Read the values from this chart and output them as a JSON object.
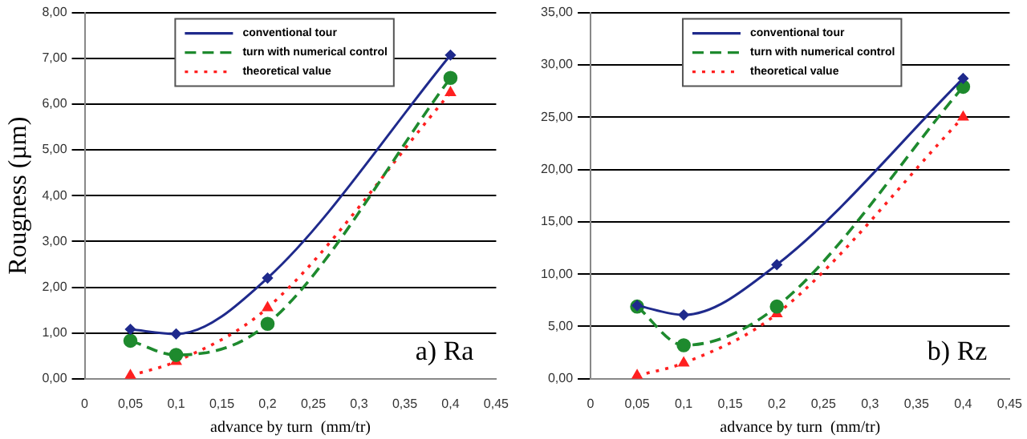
{
  "chart_data": [
    {
      "type": "line",
      "ylabel": "Rougness (µm)",
      "xlabel": "advance by turn  (mm/tr)",
      "annotations": [
        "a) Ra"
      ],
      "x": [
        0.05,
        0.1,
        0.2,
        0.4
      ],
      "series": [
        {
          "name": "conventional tour",
          "color": "#1f2a8c",
          "values": [
            1.08,
            0.98,
            2.2,
            7.07
          ],
          "line_style": "solid",
          "marker": "diamond"
        },
        {
          "name": "turn with numerical control",
          "color": "#1e8a2e",
          "values": [
            0.83,
            0.52,
            1.2,
            6.57
          ],
          "line_style": "dashed",
          "marker": "circle"
        },
        {
          "name": "theoretical value",
          "color": "#ff2020",
          "values": [
            0.07,
            0.38,
            1.55,
            6.25
          ],
          "line_style": "dotted",
          "marker": "triangle"
        }
      ],
      "xlim": [
        0,
        0.45
      ],
      "xticks": [
        0,
        {
          "value": 0.05,
          "label": "0,05"
        },
        {
          "value": 0.1,
          "label": "0,1"
        },
        {
          "value": 0.15,
          "label": "0,15"
        },
        {
          "value": 0.2,
          "label": "0,2"
        },
        {
          "value": 0.25,
          "label": "0,25"
        },
        {
          "value": 0.3,
          "label": "0,3"
        },
        {
          "value": 0.35,
          "label": "0,35"
        },
        {
          "value": 0.4,
          "label": "0,4"
        },
        {
          "value": 0.45,
          "label": "0,45"
        }
      ],
      "ylim": [
        0,
        8
      ],
      "yticks": [
        {
          "value": 0,
          "label": "0,00"
        },
        {
          "value": 1,
          "label": "1,00"
        },
        {
          "value": 2,
          "label": "2,00"
        },
        {
          "value": 3,
          "label": "3,00"
        },
        {
          "value": 4,
          "label": "4,00"
        },
        {
          "value": 5,
          "label": "5,00"
        },
        {
          "value": 6,
          "label": "6,00"
        },
        {
          "value": 7,
          "label": "7,00"
        },
        {
          "value": 8,
          "label": "8,00"
        }
      ],
      "grid": "y",
      "legend": "top left"
    },
    {
      "type": "line",
      "xlabel": "advance by turn  (mm/tr)",
      "annotations": [
        "b) Rz"
      ],
      "x": [
        0.05,
        0.1,
        0.2,
        0.4
      ],
      "series": [
        {
          "name": "conventional tour",
          "color": "#1f2a8c",
          "values": [
            7.0,
            6.1,
            10.9,
            28.7
          ],
          "line_style": "solid",
          "marker": "diamond"
        },
        {
          "name": "turn with numerical control",
          "color": "#1e8a2e",
          "values": [
            6.9,
            3.2,
            6.9,
            27.9
          ],
          "line_style": "dashed",
          "marker": "circle"
        },
        {
          "name": "theoretical value",
          "color": "#ff2020",
          "values": [
            0.3,
            1.5,
            6.2,
            25.0
          ],
          "line_style": "dotted",
          "marker": "triangle"
        }
      ],
      "xlim": [
        0,
        0.45
      ],
      "xticks": [
        0,
        {
          "value": 0.05,
          "label": "0,05"
        },
        {
          "value": 0.1,
          "label": "0,1"
        },
        {
          "value": 0.15,
          "label": "0,15"
        },
        {
          "value": 0.2,
          "label": "0,2"
        },
        {
          "value": 0.25,
          "label": "0,25"
        },
        {
          "value": 0.3,
          "label": "0,3"
        },
        {
          "value": 0.35,
          "label": "0,35"
        },
        {
          "value": 0.4,
          "label": "0,4"
        },
        {
          "value": 0.45,
          "label": "0,45"
        }
      ],
      "ylim": [
        0,
        35
      ],
      "yticks": [
        {
          "value": 0,
          "label": "0,00"
        },
        {
          "value": 5,
          "label": "5,00"
        },
        {
          "value": 10,
          "label": "10,00"
        },
        {
          "value": 15,
          "label": "15,00"
        },
        {
          "value": 20,
          "label": "20,00"
        },
        {
          "value": 25,
          "label": "25,00"
        },
        {
          "value": 30,
          "label": "30,00"
        },
        {
          "value": 35,
          "label": "35,00"
        }
      ],
      "grid": "y",
      "legend": "top left"
    }
  ]
}
